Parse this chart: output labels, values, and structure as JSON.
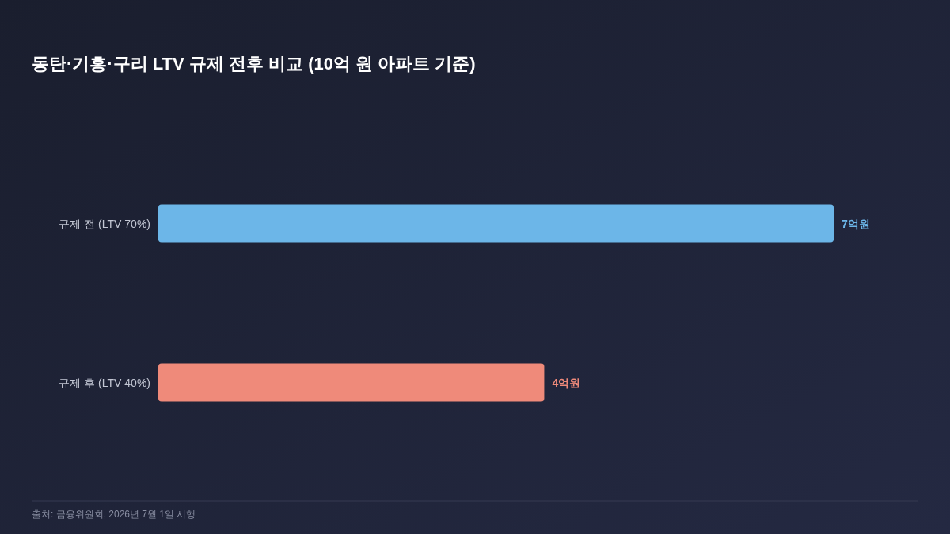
{
  "chart_data": {
    "type": "bar",
    "orientation": "horizontal",
    "title": "동탄·기흥·구리 LTV 규제 전후 비교 (10억 원 아파트 기준)",
    "categories": [
      "규제 전 (LTV 70%)",
      "규제 후 (LTV 40%)"
    ],
    "values": [
      7,
      4
    ],
    "colors": [
      "#6cb6e8",
      "#ef8a7a"
    ],
    "value_labels": [
      "7억원",
      "4억원"
    ],
    "annotations": [
      "출처: 금융위원회, 2026년 7월 1일 시행"
    ]
  }
}
